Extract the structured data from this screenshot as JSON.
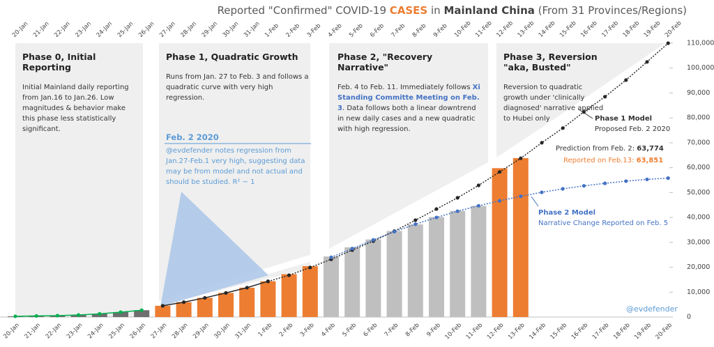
{
  "chart_data": {
    "type": "bar",
    "title_parts": [
      {
        "text": "Reported \"Confirmed\" COVID-19 ",
        "color": "#595959",
        "bold": false
      },
      {
        "text": "CASES",
        "color": "#ed7d31",
        "bold": true
      },
      {
        "text": " in ",
        "color": "#595959",
        "bold": false
      },
      {
        "text": "Mainland China",
        "color": "#404040",
        "bold": true
      },
      {
        "text": " (From 31 Provinces/Regions)",
        "color": "#595959",
        "bold": false
      }
    ],
    "categories": [
      "20-Jan",
      "21-Jan",
      "22-Jan",
      "23-Jan",
      "24-Jan",
      "25-Jan",
      "26-Jan",
      "27-Jan",
      "28-Jan",
      "29-Jan",
      "30-Jan",
      "31-Jan",
      "1-Feb",
      "2-Feb",
      "3-Feb",
      "4-Feb",
      "5-Feb",
      "6-Feb",
      "7-Feb",
      "8-Feb",
      "9-Feb",
      "10-Feb",
      "11-Feb",
      "12-Feb",
      "13-Feb",
      "14-Feb",
      "15-Feb",
      "16-Feb",
      "17-Feb",
      "18-Feb",
      "19-Feb",
      "20-Feb"
    ],
    "bars": {
      "values": [
        291,
        440,
        571,
        830,
        1287,
        1975,
        2744,
        4515,
        5974,
        7711,
        9692,
        11791,
        14380,
        17205,
        20438,
        24324,
        28018,
        31161,
        34546,
        37198,
        40171,
        42638,
        44653,
        59804,
        63851,
        null,
        null,
        null,
        null,
        null,
        null,
        null
      ],
      "colors": [
        "#6e6e6e",
        "#6e6e6e",
        "#6e6e6e",
        "#6e6e6e",
        "#6e6e6e",
        "#6e6e6e",
        "#6e6e6e",
        "#ed7d31",
        "#ed7d31",
        "#ed7d31",
        "#ed7d31",
        "#ed7d31",
        "#ed7d31",
        "#ed7d31",
        "#ed7d31",
        "#bfbfbf",
        "#bfbfbf",
        "#bfbfbf",
        "#bfbfbf",
        "#bfbfbf",
        "#bfbfbf",
        "#bfbfbf",
        "#bfbfbf",
        "#ed7d31",
        "#ed7d31",
        null,
        null,
        null,
        null,
        null,
        null,
        null
      ]
    },
    "lines": [
      {
        "color": "#00b050",
        "dash": false,
        "values": [
          291,
          440,
          571,
          830,
          1287,
          1975,
          2744,
          null,
          null,
          null,
          null,
          null,
          null,
          null,
          null,
          null,
          null,
          null,
          null,
          null,
          null,
          null,
          null,
          null,
          null,
          null,
          null,
          null,
          null,
          null,
          null,
          null
        ]
      },
      {
        "color": "#262626",
        "dash": false,
        "values": [
          null,
          null,
          null,
          null,
          null,
          null,
          null,
          4515,
          5974,
          7711,
          9692,
          11791,
          14380,
          null,
          null,
          null,
          null,
          null,
          null,
          null,
          null,
          null,
          null,
          null,
          null,
          null,
          null,
          null,
          null,
          null,
          null,
          null
        ]
      },
      {
        "color": "#262626",
        "dash": true,
        "values": [
          null,
          null,
          null,
          null,
          null,
          null,
          null,
          null,
          null,
          null,
          null,
          null,
          14300,
          16800,
          19900,
          23200,
          26900,
          30500,
          34500,
          38900,
          43400,
          47900,
          52900,
          58300,
          63774,
          70000,
          75900,
          82400,
          88500,
          95200,
          102500,
          110000
        ]
      },
      {
        "color": "#4472c4",
        "dash": true,
        "values": [
          null,
          null,
          null,
          null,
          null,
          null,
          null,
          null,
          null,
          null,
          null,
          null,
          null,
          null,
          null,
          24000,
          27500,
          31000,
          34300,
          37300,
          40000,
          42500,
          44700,
          46700,
          48500,
          50100,
          51500,
          52700,
          53700,
          54600,
          55300,
          55800
        ]
      }
    ],
    "ylim": [
      0,
      110000
    ],
    "yticks": [
      0,
      {
        "value": 10000,
        "label": "10,000"
      },
      {
        "value": 20000,
        "label": "20,000"
      },
      {
        "value": 30000,
        "label": "30,000"
      },
      {
        "value": 40000,
        "label": "40,000"
      },
      {
        "value": 50000,
        "label": "50,000"
      },
      {
        "value": 60000,
        "label": "60,000"
      },
      {
        "value": 70000,
        "label": "70,000"
      },
      {
        "value": 80000,
        "label": "80,000"
      },
      {
        "value": 90000,
        "label": "90,000"
      },
      {
        "value": 100000,
        "label": "100,000"
      },
      {
        "value": 110000,
        "label": "110,000"
      }
    ],
    "annotations": {
      "phase0": {
        "heading": "Phase 0, Initial Reporting",
        "body": [
          "Initial Mainland daily reporting from Jan.16 to Jan.26.  Low magnitudes & behavior make this phase less statistically significant."
        ]
      },
      "phase1": {
        "heading": "Phase 1, Quadratic Growth",
        "body": [
          "Runs from Jan. 27 to Feb. 3 and follows a quadratic curve with very high regression."
        ]
      },
      "phase2": {
        "heading": "Phase 2, \"Recovery Narrative\"",
        "body": [
          "Feb. 4 to Feb. 11.  Immediately follows ",
          "Xi Standing Committe Meeting on Feb. 3",
          ". Data follows both a linear downtrend in new daily cases and a new quadratic with high regression."
        ]
      },
      "phase3": {
        "heading": "Phase 3,  Reversion  \"aka, Busted\"",
        "body": [
          "Reversion to quadratic growth under 'clinically diagnosed' narrative applied to Hubei only"
        ]
      },
      "feb2": {
        "heading": "Feb. 2  2020",
        "body": "@evdefender notes regression from Jan.27-Feb.1 very high, suggesting data may be from model and not actual and should be studied.  R² ~ 1"
      },
      "model1": {
        "heading": "Phase 1 Model",
        "body": "Proposed Feb. 2  2020"
      },
      "prediction": {
        "text": "Prediction from Feb. 2: ",
        "number": "63,774"
      },
      "reported": {
        "text": "Reported on Feb.13: ",
        "number": "63,851"
      },
      "model2": {
        "heading": "Phase 2 Model",
        "body": "Narrative Change Reported on Feb. 5"
      },
      "credit": "@evdefender"
    }
  }
}
